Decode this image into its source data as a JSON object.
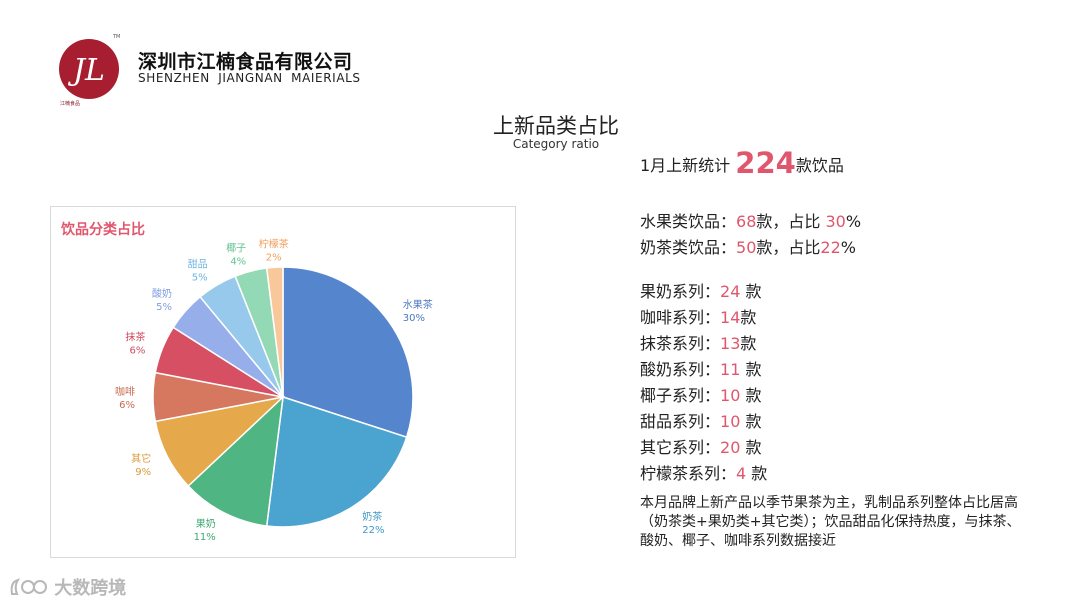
{
  "header": {
    "company_cn": "深圳市江楠食品有限公司",
    "company_en": "SHENZHEN  JIANGNAN  MAIERIALS",
    "logo_mark": "JL",
    "logo_tm": "TM",
    "logo_sub": "江楠食品",
    "brand_color": "#a61e2f"
  },
  "title": {
    "cn": "上新品类占比",
    "en": "Category ratio"
  },
  "summary": {
    "prefix": "1月上新统计",
    "total": "224",
    "suffix": "款饮品"
  },
  "ratios": [
    {
      "label": "水果类饮品：",
      "count": "68",
      "mid": "款，占比 ",
      "pct": "30",
      "end": "%"
    },
    {
      "label": "奶茶类饮品：",
      "count": "50",
      "mid": "款，占比",
      "pct": "22",
      "end": "%"
    }
  ],
  "series": [
    {
      "label": "果奶系列：",
      "count": "24",
      "unit": " 款"
    },
    {
      "label": "咖啡系列：",
      "count": "14",
      "unit": "款"
    },
    {
      "label": "抹茶系列：",
      "count": "13",
      "unit": "款"
    },
    {
      "label": "酸奶系列：",
      "count": "11",
      "unit": " 款"
    },
    {
      "label": "椰子系列：",
      "count": "10",
      "unit": " 款"
    },
    {
      "label": "甜品系列：",
      "count": "10",
      "unit": " 款"
    },
    {
      "label": "其它系列：",
      "count": "20",
      "unit": " 款"
    },
    {
      "label": "柠檬茶系列：",
      "count": "4",
      "unit": " 款"
    }
  ],
  "note": "本月品牌上新产品以季节果茶为主，乳制品系列整体占比居高（奶茶类+果奶类+其它类）；饮品甜品化保持热度，与抹茶、酸奶、椰子、咖啡系列数据接近",
  "watermark": "大数跨境",
  "chart_data": {
    "type": "pie",
    "title": "饮品分类占比",
    "labels": [
      "水果茶",
      "奶茶",
      "果奶",
      "其它",
      "咖啡",
      "抹茶",
      "酸奶",
      "甜品",
      "椰子",
      "柠檬茶"
    ],
    "values": [
      30,
      22,
      11,
      9,
      6,
      6,
      5,
      5,
      4,
      2
    ],
    "value_labels": [
      "30%",
      "22%",
      "11%",
      "9%",
      "6%",
      "6%",
      "5%",
      "5%",
      "4%",
      "2%"
    ],
    "colors": [
      "#5585cc",
      "#4ba3cf",
      "#4fb583",
      "#e5a84a",
      "#d6775f",
      "#d64f63",
      "#96aeea",
      "#97c9ec",
      "#94d9b5",
      "#f8c89a"
    ],
    "label_colors": [
      "#4a78c2",
      "#3e98c9",
      "#3ea873",
      "#d99a3a",
      "#c96a52",
      "#d14a5f",
      "#7f9ee0",
      "#6eb4e0",
      "#62c293",
      "#ef9f5e"
    ],
    "start": "12 o'clock",
    "direction": "clockwise",
    "legend": "none"
  }
}
